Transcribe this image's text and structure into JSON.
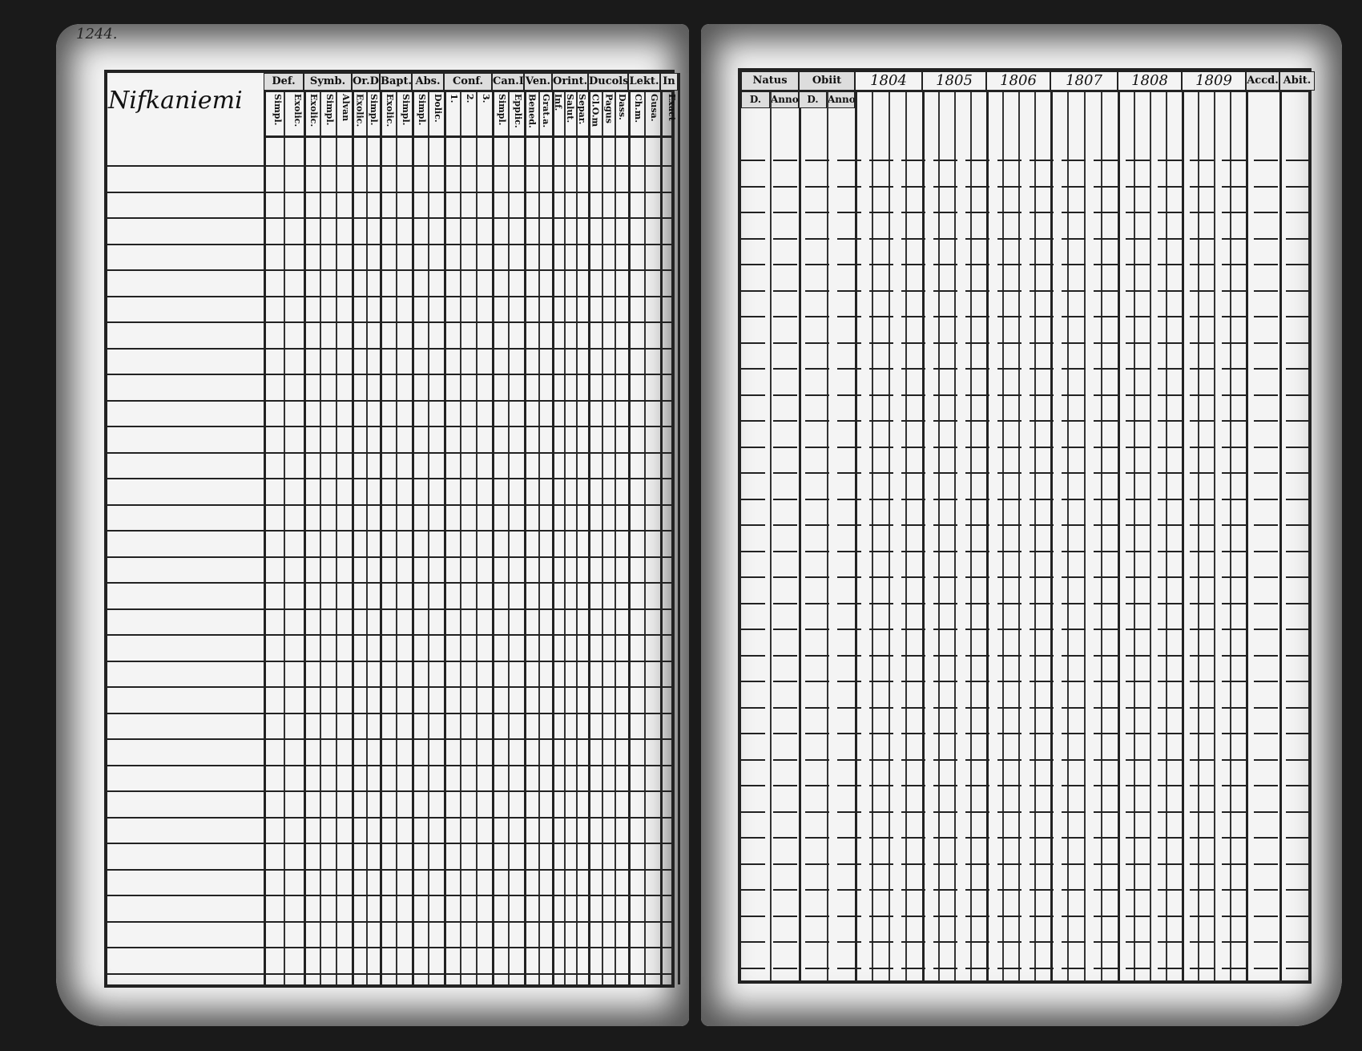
{
  "page_number": "1244.",
  "left_page": {
    "parish_name": "Nifkaniemi",
    "columns": [
      {
        "label": "Def.",
        "subs": [
          "Simpl.",
          "Exolic."
        ]
      },
      {
        "label": "Symb.",
        "subs": [
          "Exolic.",
          "Simpl.",
          "Alvan"
        ]
      },
      {
        "label": "Or.D",
        "subs": [
          "Exolic.",
          "Simpl."
        ]
      },
      {
        "label": "Bapt.",
        "subs": [
          "Exolic.",
          "Simpl."
        ]
      },
      {
        "label": "Abs.",
        "subs": [
          "Simpl.",
          "Dolic."
        ]
      },
      {
        "label": "Conf.",
        "subs": [
          "1.",
          "2.",
          "3."
        ]
      },
      {
        "label": "Can.D",
        "subs": [
          "Simpl.",
          "Epplic."
        ]
      },
      {
        "label": "Ven.",
        "subs": [
          "Bened.",
          "Grat.a."
        ]
      },
      {
        "label": "Orint.",
        "subs": [
          "Inf.",
          "Salut.",
          "Separ."
        ]
      },
      {
        "label": "Ducols",
        "subs": [
          "Cl.O.m",
          "Pagus",
          "Dass."
        ]
      },
      {
        "label": "Lekt.",
        "subs": [
          "Ch.m.",
          "Gusa."
        ]
      },
      {
        "label": "In",
        "subs": [
          "Exact"
        ]
      }
    ]
  },
  "right_page": {
    "columns": [
      {
        "label": "Natus",
        "subs": [
          "D.",
          "Anno"
        ]
      },
      {
        "label": "Obiit",
        "subs": [
          "D.",
          "Anno"
        ]
      },
      {
        "label": "1804",
        "subs": []
      },
      {
        "label": "1805",
        "subs": []
      },
      {
        "label": "1806",
        "subs": []
      },
      {
        "label": "1807",
        "subs": []
      },
      {
        "label": "1808",
        "subs": []
      },
      {
        "label": "1809",
        "subs": []
      },
      {
        "label": "Accd.",
        "subs": []
      },
      {
        "label": "Abit.",
        "subs": []
      }
    ]
  },
  "colors": {
    "ink": "#222222",
    "paper": "#f4f4f4",
    "background": "#1a1a1a"
  }
}
